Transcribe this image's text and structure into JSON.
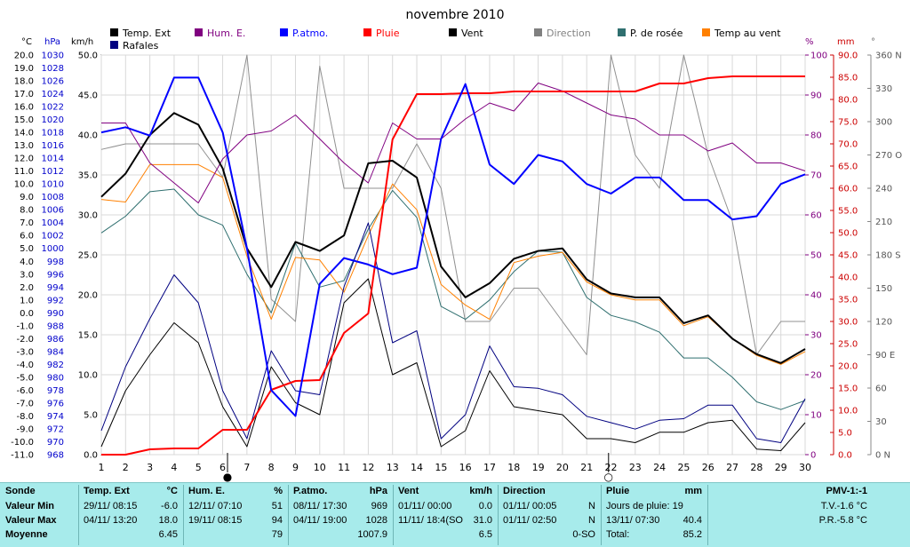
{
  "chart_data": {
    "type": "line",
    "title": "novembre 2010",
    "x": [
      1,
      2,
      3,
      4,
      5,
      6,
      7,
      8,
      9,
      10,
      11,
      12,
      13,
      14,
      15,
      16,
      17,
      18,
      19,
      20,
      21,
      22,
      23,
      24,
      25,
      26,
      27,
      28,
      29,
      30
    ],
    "xlim": [
      1,
      30
    ],
    "axes": {
      "temp": {
        "label": "°C",
        "min": -11.0,
        "max": 20.0,
        "step": 1.0
      },
      "hpa": {
        "label": "hPa",
        "min": 968,
        "max": 1030,
        "step": 2
      },
      "kmh": {
        "label": "km/h",
        "min": 0,
        "max": 50,
        "step": 5
      },
      "pct": {
        "label": "%",
        "min": 0,
        "max": 100,
        "step": 10
      },
      "mm": {
        "label": "mm",
        "min": 0,
        "max": 90,
        "step": 5
      },
      "deg": {
        "label": "°",
        "min": 0,
        "max": 360,
        "step": 30,
        "ticks": [
          "0 N",
          "30",
          "60",
          "90 E",
          "120",
          "150",
          "180 S",
          "210",
          "240",
          "270 O",
          "300",
          "330",
          "360 N"
        ]
      }
    },
    "legend": [
      {
        "name": "Temp. Ext",
        "color": "#000000"
      },
      {
        "name": "Rafales",
        "color": "#000080"
      },
      {
        "name": "Hum. E.",
        "color": "#800080"
      },
      {
        "name": "P.atmo.",
        "color": "#0000ff"
      },
      {
        "name": "Pluie",
        "color": "#ff0000"
      },
      {
        "name": "Vent",
        "color": "#000000"
      },
      {
        "name": "Direction",
        "color": "#808080"
      },
      {
        "name": "P. de rosée",
        "color": "#2f6f6f"
      },
      {
        "name": "Temp au vent",
        "color": "#ff8000"
      }
    ],
    "series": [
      {
        "name": "Temp. Ext",
        "axis": "temp",
        "color": "#000000",
        "width": 2,
        "values": [
          9.0,
          10.8,
          13.8,
          15.5,
          14.6,
          11.2,
          5.0,
          2.0,
          5.5,
          4.8,
          6.0,
          11.6,
          11.8,
          10.5,
          3.6,
          1.2,
          2.3,
          4.2,
          4.8,
          5.0,
          2.6,
          1.5,
          1.2,
          1.2,
          -0.8,
          -0.2,
          -2.0,
          -3.2,
          -3.9,
          -2.8
        ]
      },
      {
        "name": "Temp au vent",
        "axis": "temp",
        "color": "#ff8000",
        "width": 1,
        "values": [
          8.8,
          8.6,
          11.5,
          11.5,
          11.5,
          10.5,
          4.4,
          -0.5,
          4.3,
          4.1,
          1.6,
          6.0,
          10.0,
          8.0,
          2.2,
          0.6,
          -0.5,
          3.9,
          4.4,
          4.7,
          2.4,
          1.4,
          1.0,
          1.0,
          -1.0,
          -0.3,
          -2.0,
          -3.3,
          -4.0,
          -3.0
        ]
      },
      {
        "name": "P. de rosée",
        "axis": "temp",
        "color": "#2f6f6f",
        "width": 1,
        "values": [
          6.2,
          7.5,
          9.4,
          9.6,
          7.6,
          6.8,
          3.0,
          0.0,
          5.4,
          2.0,
          2.5,
          6.5,
          9.5,
          7.4,
          0.5,
          -0.5,
          1.0,
          3.2,
          4.8,
          4.7,
          1.2,
          -0.2,
          -0.7,
          -1.5,
          -3.5,
          -3.5,
          -5.0,
          -6.9,
          -7.5,
          -6.8
        ]
      },
      {
        "name": "Hum. E.",
        "axis": "pct",
        "color": "#800080",
        "width": 1,
        "values": [
          83,
          83,
          73,
          68,
          63,
          74,
          80,
          81,
          85,
          79,
          73,
          68,
          83,
          79,
          79,
          84,
          88,
          86,
          93,
          91,
          88,
          85,
          84,
          80,
          80,
          76,
          78,
          73,
          73,
          71
        ]
      },
      {
        "name": "P.atmo.",
        "axis": "hpa",
        "color": "#0000ff",
        "width": 2,
        "values": [
          1018.0,
          1018.8,
          1017.5,
          1026.5,
          1026.5,
          1018.0,
          1000.0,
          978.0,
          974.0,
          994.5,
          998.5,
          997.5,
          996.0,
          997.0,
          1017.0,
          1025.5,
          1013.0,
          1010.0,
          1014.5,
          1013.5,
          1010.0,
          1008.5,
          1011.0,
          1011.0,
          1007.5,
          1007.5,
          1004.5,
          1005.0,
          1010.0,
          1011.5
        ]
      },
      {
        "name": "Pluie",
        "axis": "mm",
        "color": "#ff0000",
        "width": 2,
        "values": [
          0,
          0,
          1.2,
          1.4,
          1.4,
          5.6,
          5.6,
          14.6,
          16.6,
          16.8,
          27.4,
          31.8,
          71.0,
          81.2,
          81.2,
          81.4,
          81.4,
          81.8,
          81.8,
          81.8,
          81.8,
          81.8,
          81.8,
          83.6,
          83.6,
          84.8,
          85.2,
          85.2,
          85.2,
          85.2
        ]
      },
      {
        "name": "Vent",
        "axis": "kmh",
        "color": "#000000",
        "width": 1,
        "values": [
          1.0,
          8.0,
          12.5,
          16.5,
          14.0,
          6.0,
          1.0,
          11.0,
          6.5,
          5.0,
          19.0,
          22.0,
          10.0,
          11.5,
          1.0,
          3.0,
          10.5,
          6.0,
          5.5,
          5.0,
          2.0,
          2.0,
          1.5,
          2.8,
          2.8,
          4.0,
          4.3,
          0.7,
          0.5,
          4.0
        ]
      },
      {
        "name": "Rafales",
        "axis": "kmh",
        "color": "#000080",
        "width": 1,
        "values": [
          3.0,
          11.0,
          17.0,
          22.5,
          19.0,
          8.0,
          2.0,
          13.0,
          8.0,
          7.5,
          21.0,
          29.0,
          14.0,
          15.5,
          2.0,
          5.0,
          13.6,
          8.5,
          8.3,
          7.5,
          4.8,
          4.0,
          3.2,
          4.3,
          4.5,
          6.2,
          6.2,
          2.0,
          1.5,
          7.0
        ]
      },
      {
        "name": "Direction",
        "axis": "deg",
        "color": "#909090",
        "width": 1,
        "values": [
          275,
          280,
          280,
          280,
          280,
          250,
          360,
          140,
          120,
          350,
          240,
          240,
          240,
          280,
          240,
          120,
          120,
          150,
          150,
          120,
          90,
          360,
          270,
          240,
          360,
          270,
          210,
          90,
          120,
          120
        ]
      }
    ],
    "x_markers": [
      {
        "x": 6.2,
        "symbol": "●"
      },
      {
        "x": 21.9,
        "symbol": "○"
      }
    ]
  },
  "table": {
    "sonde": {
      "title": "Sonde",
      "min": "Valeur Min",
      "max": "Valeur Max",
      "avg": "Moyenne"
    },
    "temp": {
      "title": "Temp. Ext",
      "unit": "°C",
      "min_date": "29/11/ 08:15",
      "min_val": "-6.0",
      "max_date": "04/11/ 13:20",
      "max_val": "18.0",
      "avg": "6.45"
    },
    "hum": {
      "title": "Hum. E.",
      "unit": "%",
      "min_date": "12/11/ 07:10",
      "min_val": "51",
      "max_date": "19/11/ 08:15",
      "max_val": "94",
      "avg": "79"
    },
    "patmo": {
      "title": "P.atmo.",
      "unit": "hPa",
      "min_date": "08/11/ 17:30",
      "min_val": "969",
      "max_date": "04/11/ 19:00",
      "max_val": "1028",
      "avg": "1007.9"
    },
    "vent": {
      "title": "Vent",
      "unit": "km/h",
      "min_date": "01/11/ 00:00",
      "min_val": "0.0",
      "max_date": "11/11/ 18:4(SO",
      "max_val": "31.0",
      "avg": "6.5"
    },
    "dir": {
      "title": "Direction",
      "min_date": "01/11/ 00:05",
      "min_val": "N",
      "max_date": "01/11/ 02:50",
      "max_val": "N",
      "avg": "0-SO"
    },
    "pluie": {
      "title": "Pluie",
      "unit": "mm",
      "line1": "Jours de pluie: 19",
      "line2_date": "13/11/ 07:30",
      "line2_val": "40.4",
      "line3_label": "Total:",
      "line3_val": "85.2"
    },
    "pmv": {
      "title": "PMV-1:-1",
      "tv": "T.V.-1.6 °C",
      "pr": "P.R.-5.8 °C"
    }
  }
}
